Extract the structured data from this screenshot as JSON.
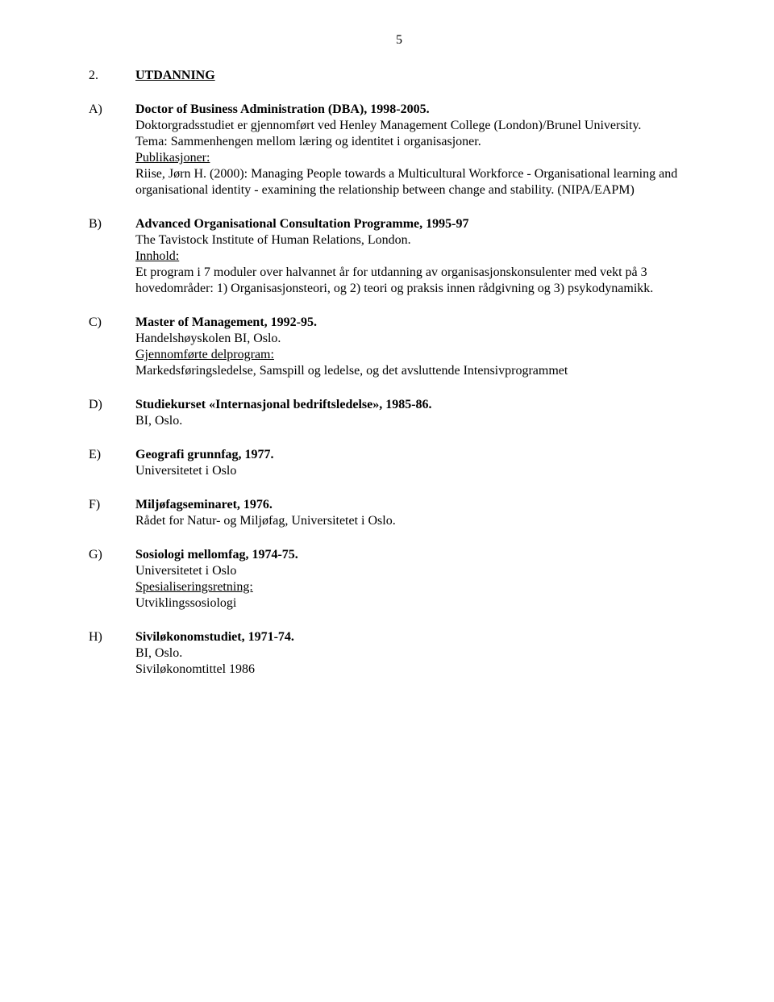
{
  "pageNumber": "5",
  "heading": {
    "num": "2.",
    "title": "UTDANNING"
  },
  "A": {
    "letter": "A)",
    "title": "Doctor of Business Administration (DBA), 1998-2005.",
    "l1": "Doktorgradsstudiet er gjennomført ved Henley Management College (London)/Brunel University.",
    "l2": "Tema: Sammenhengen mellom læring og identitet i organisasjoner.",
    "pubLabel": "Publikasjoner:",
    "l3": "Riise, Jørn H. (2000): Managing People towards a Multicultural Workforce - Organisational learning and organisational identity - examining the relationship between change and stability. (NIPA/EAPM)"
  },
  "B": {
    "letter": "B)",
    "title": "Advanced Organisational Consultation Programme, 1995-97",
    "l1": "The Tavistock Institute of Human Relations, London.",
    "innLabel": "Innhold:",
    "l2": "Et program i 7 moduler over halvannet år for utdanning av organisasjonskonsulenter med vekt på 3 hovedområder: 1) Organisasjonsteori, og 2) teori og praksis innen rådgivning og 3) psykodynamikk."
  },
  "C": {
    "letter": "C)",
    "title": "Master of Management,  1992-95.",
    "l1": "Handelshøyskolen BI, Oslo.",
    "delLabel": "Gjennomførte delprogram:",
    "l2": "Markedsføringsledelse, Samspill og ledelse, og det avsluttende Intensivprogrammet"
  },
  "D": {
    "letter": "D)",
    "title": "Studiekurset «Internasjonal bedriftsledelse»,  1985-86.",
    "l1": "BI, Oslo."
  },
  "E": {
    "letter": "E)",
    "title": "Geografi grunnfag,  1977.",
    "l1": "Universitetet i Oslo"
  },
  "F": {
    "letter": "F)",
    "title": "Miljøfagseminaret, 1976.",
    "l1": "Rådet for Natur- og Miljøfag, Universitetet i Oslo."
  },
  "G": {
    "letter": "G)",
    "title": "Sosiologi mellomfag, 1974-75.",
    "l1": "Universitetet i Oslo",
    "specLabel": "Spesialiseringsretning:",
    "l2": "Utviklingssosiologi"
  },
  "H": {
    "letter": "H)",
    "title": "Siviløkonomstudiet, 1971-74.",
    "l1": "BI, Oslo.",
    "l2": "Siviløkonomtittel 1986"
  }
}
